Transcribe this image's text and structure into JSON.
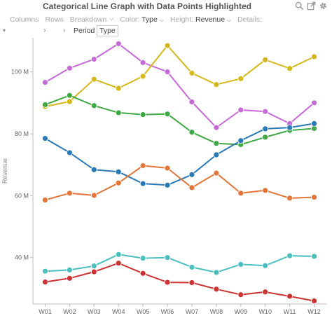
{
  "header": {
    "title": "Categorical Line Graph with Data Points Highlighted"
  },
  "icons": [
    "search-icon",
    "export-icon",
    "gear-icon"
  ],
  "controls": {
    "columns_label": "Columns",
    "rows_label": "Rows",
    "breakdown_label": "Breakdown",
    "color_label": "Color:",
    "color_value": "Type",
    "height_label": "Height:",
    "height_value": "Revenue",
    "details_label": "Details:",
    "row_arrow": "›",
    "column_arrow": "›",
    "column_chip_period": "Period",
    "column_chip_type": "Type"
  },
  "chart_data": {
    "type": "line",
    "title": "",
    "xlabel": "",
    "ylabel": "Revenue",
    "categories": [
      "W01",
      "W02",
      "W03",
      "W04",
      "W05",
      "W06",
      "W07",
      "W08",
      "W09",
      "W10",
      "W11",
      "W12"
    ],
    "ylim": [
      25,
      111
    ],
    "yticks": [
      40,
      60,
      80,
      100
    ],
    "ytick_labels": [
      "40 M",
      "60 M",
      "80 M",
      "100 M"
    ],
    "grid": false,
    "markers": true,
    "series": [
      {
        "color": "#c56bd6",
        "values": [
          96.6,
          101.2,
          104.1,
          109.1,
          103.0,
          100.0,
          90.3,
          82.0,
          87.7,
          87.2,
          83.3,
          90.0
        ]
      },
      {
        "color": "#d4b81c",
        "values": [
          88.8,
          90.4,
          97.6,
          94.7,
          98.6,
          108.5,
          99.6,
          95.9,
          97.8,
          103.9,
          101.1,
          104.9
        ]
      },
      {
        "color": "#3fa844",
        "values": [
          89.4,
          92.4,
          89.1,
          86.8,
          86.2,
          86.4,
          80.5,
          76.9,
          76.5,
          78.9,
          81.1,
          81.7
        ]
      },
      {
        "color": "#2a78b4",
        "values": [
          78.5,
          73.9,
          68.4,
          67.7,
          63.9,
          63.4,
          66.8,
          73.2,
          77.8,
          81.6,
          82.0,
          83.3
        ]
      },
      {
        "color": "#e2763a",
        "values": [
          58.6,
          60.8,
          60.1,
          64.1,
          69.7,
          68.9,
          62.6,
          67.3,
          60.8,
          61.7,
          59.2,
          59.5
        ]
      },
      {
        "color": "#4bbebe",
        "values": [
          35.6,
          36.0,
          37.3,
          41.0,
          39.8,
          40.0,
          36.9,
          35.2,
          37.8,
          37.4,
          40.6,
          40.4
        ]
      },
      {
        "color": "#cc3333",
        "values": [
          32.1,
          33.3,
          35.4,
          38.2,
          34.9,
          32.0,
          31.9,
          29.8,
          28.0,
          28.9,
          27.5,
          26.0
        ]
      }
    ]
  }
}
